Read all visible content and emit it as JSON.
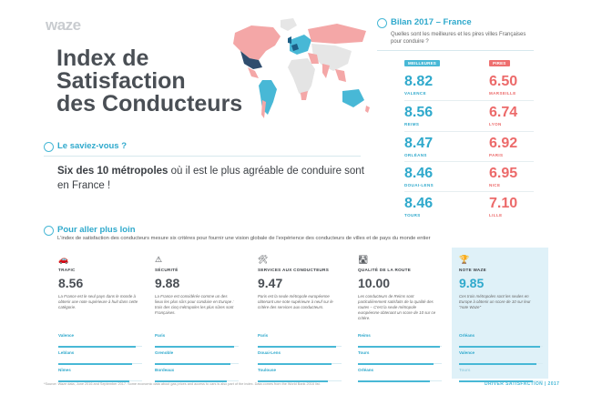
{
  "logo": "waze",
  "title": [
    "Index de",
    "Satisfaction",
    "des Conducteurs"
  ],
  "saviez": {
    "title": "Le saviez-vous ?",
    "fact_bold": "Six des 10 métropoles",
    "fact_rest": " où il est le plus agréable de conduire sont en France !"
  },
  "bilan": {
    "title": "Bilan 2017 – France",
    "subtitle": "Quelles sont les meilleures et les pires villes Françaises pour conduire ?",
    "best_tag": "MEILLEURES",
    "worst_tag": "PIRES",
    "best": [
      {
        "value": "8.82",
        "city": "VALENCE"
      },
      {
        "value": "8.56",
        "city": "REIMS"
      },
      {
        "value": "8.47",
        "city": "ORLÉANS"
      },
      {
        "value": "8.46",
        "city": "DOUAI-LENS"
      },
      {
        "value": "8.46",
        "city": "TOURS"
      }
    ],
    "worst": [
      {
        "value": "6.50",
        "city": "MARSEILLE"
      },
      {
        "value": "6.74",
        "city": "LYON"
      },
      {
        "value": "6.92",
        "city": "PARIS"
      },
      {
        "value": "6.95",
        "city": "NICE"
      },
      {
        "value": "7.10",
        "city": "LILLE"
      }
    ]
  },
  "plus": {
    "title": "Pour aller plus loin",
    "subtitle": "L'index de satisfaction des conducteurs mesure six critères pour fournir une vision globale de l'expérience des conducteurs de villes et de pays du monde entier"
  },
  "cards": [
    {
      "icon": "🚗",
      "icon_name": "traffic-icon",
      "label": "TRAFIC",
      "value": "8.56",
      "desc": "La France est le seul pays dans le monde à obtenir une note supérieure à huit dans cette catégorie.",
      "bars": [
        {
          "name": "Valence",
          "level": 0.92
        },
        {
          "name": "Leblans",
          "level": 0.88
        },
        {
          "name": "Nîmes",
          "level": 0.85
        }
      ]
    },
    {
      "icon": "⚠",
      "icon_name": "warning-icon",
      "label": "SÉCURITÉ",
      "value": "9.88",
      "desc": "La France est considérée comme un des lieux les plus sûrs pour conduire en Europe : trois des cinq métropoles les plus sûres sont Françaises.",
      "bars": [
        {
          "name": "Paris",
          "level": 0.95
        },
        {
          "name": "Grenoble",
          "level": 0.9
        },
        {
          "name": "Bordeaux",
          "level": 0.86
        }
      ]
    },
    {
      "icon": "🛠",
      "icon_name": "tools-icon",
      "label": "SERVICES AUX CONDUCTEURS",
      "value": "9.47",
      "desc": "Paris est la seule métropole européenne obtenant une note supérieure à neuf sur le critère des services aux conducteurs.",
      "bars": [
        {
          "name": "Paris",
          "level": 0.93
        },
        {
          "name": "Douai-Lens",
          "level": 0.88
        },
        {
          "name": "Toulouse",
          "level": 0.84
        }
      ]
    },
    {
      "icon": "🛣",
      "icon_name": "road-icon",
      "label": "QUALITÉ DE LA ROUTE",
      "value": "10.00",
      "desc": "Les conducteurs de Reims sont particulièrement satisfaits de la qualité des routes – C'est la seule métropole européenne obtenant un score de 10 sur ce critère.",
      "bars": [
        {
          "name": "Reims",
          "level": 0.98
        },
        {
          "name": "Tours",
          "level": 0.9
        },
        {
          "name": "Orléans",
          "level": 0.86
        }
      ]
    },
    {
      "icon": "🏆",
      "icon_name": "trophy-icon",
      "label": "NOTE WAZE",
      "value": "9.85",
      "desc": "Ces trois métropoles sont les seules en Europe à obtenir un score de 10 sur leur \"note Waze\"",
      "bars": [
        {
          "name": "Orléans",
          "level": 0.97
        },
        {
          "name": "Valence",
          "level": 0.92
        },
        {
          "name": "Tours",
          "level": 0.88,
          "faded": true
        }
      ]
    }
  ],
  "footnote": "*Source: Waze data, June 2016 and September 2017. Some economic data about gas prices and access to cars is also part of the index. Data comes from the World Bank 2016 list.",
  "footer": "DRIVER SATISFACTION | 2017",
  "colors": {
    "accent": "#48b8d6",
    "best": "#2fa9cc",
    "worst": "#ec6a6a",
    "map_pink": "#f4a7a7",
    "map_blue": "#48b8d6"
  }
}
